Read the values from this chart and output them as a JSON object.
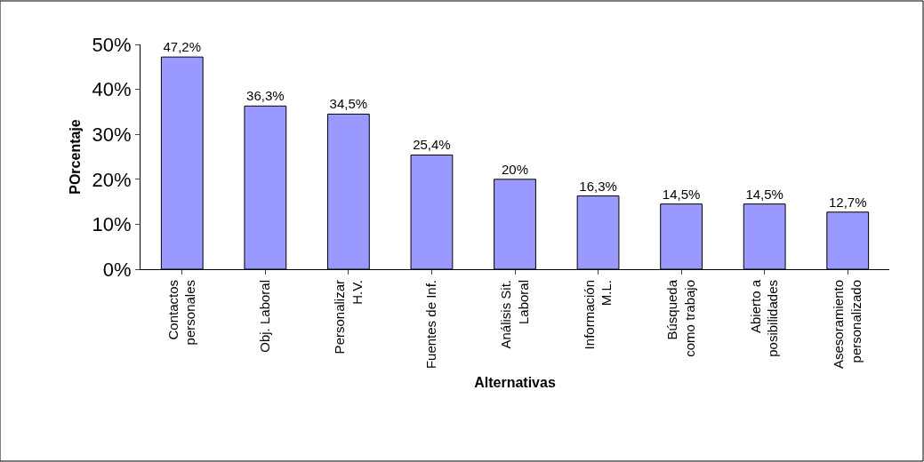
{
  "chart_data": {
    "type": "bar",
    "xlabel": "Alternativas",
    "ylabel": "POrcentaje",
    "categories": [
      "Contactos\npersonales",
      "Obj. Laboral",
      "Personalizar\nH.V.",
      "Fuentes de Inf.",
      "Análisis Sit.\nLaboral",
      "Información\nM.L.",
      "Búsqueda\ncomo trabajo",
      "Abierto a\nposibilidades",
      "Asesoramiento\npersonalizado"
    ],
    "values": [
      47.2,
      36.3,
      34.5,
      25.4,
      20,
      16.3,
      14.5,
      14.5,
      12.7
    ],
    "value_labels": [
      "47,2%",
      "36,3%",
      "34,5%",
      "25,4%",
      "20%",
      "16,3%",
      "14,5%",
      "14,5%",
      "12,7%"
    ],
    "color": "#9999ff",
    "ylim": [
      0,
      50
    ],
    "yticks": [
      {
        "value": 0,
        "label": "0%"
      },
      {
        "value": 10,
        "label": "10%"
      },
      {
        "value": 20,
        "label": "20%"
      },
      {
        "value": 30,
        "label": "30%"
      },
      {
        "value": 40,
        "label": "40%"
      },
      {
        "value": 50,
        "label": "50%"
      }
    ]
  }
}
